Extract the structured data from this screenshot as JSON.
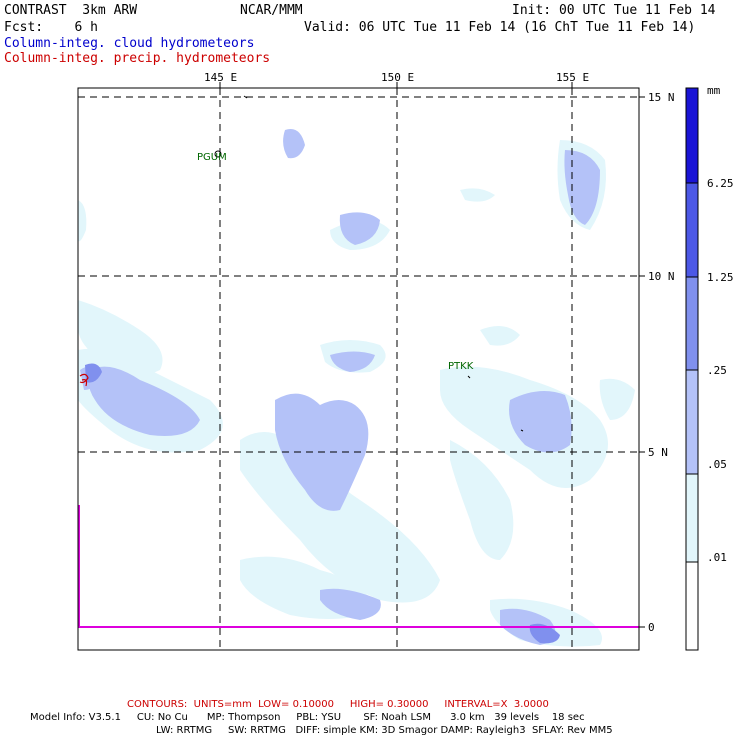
{
  "header": {
    "model": "CONTRAST  3km ARW",
    "org": "NCAR/MMM",
    "init": "Init: 00 UTC Tue 11 Feb 14",
    "fcst": "Fcst:    6 h",
    "valid": "Valid: 06 UTC Tue 11 Feb 14 (16 ChT Tue 11 Feb 14)",
    "field1": "Column-integ. cloud hydrometeors",
    "field2": "Column-integ. precip. hydrometeors"
  },
  "axes": {
    "lon_labels": [
      "145 E",
      "150 E",
      "155 E"
    ],
    "lat_labels": [
      "15 N",
      "10 N",
      "5 N",
      "0"
    ]
  },
  "stations": [
    {
      "name": "PGUM"
    },
    {
      "name": "PTKK"
    }
  ],
  "colorbar": {
    "unit": "mm",
    "levels": [
      ".01",
      ".05",
      ".25",
      "1.25",
      "6.25"
    ],
    "colors": [
      "#ffffff",
      "#e2f6fb",
      "#b4c2f8",
      "#8090ee",
      "#4c58e6",
      "#1a14d6"
    ]
  },
  "footer": {
    "contours": "CONTOURS:  UNITS=mm  LOW= 0.10000     HIGH= 0.30000     INTERVAL=X  3.0000",
    "model_info": "Model Info: V3.5.1     CU: No Cu      MP: Thompson     PBL: YSU       SF: Noah LSM      3.0 km   39 levels    18 sec",
    "model_info2": "LW: RRTMG     SW: RRTMG   DIFF: simple KM: 3D Smagor DAMP: Rayleigh3  SFLAY: Rev MM5"
  }
}
